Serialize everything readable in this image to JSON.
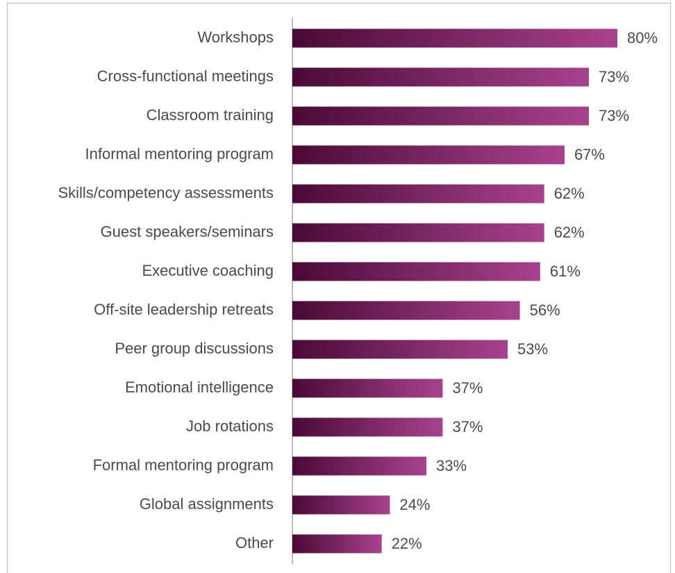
{
  "chart_data": {
    "type": "bar",
    "orientation": "horizontal",
    "categories": [
      "Workshops",
      "Cross-functional meetings",
      "Classroom training",
      "Informal mentoring program",
      "Skills/competency assessments",
      "Guest speakers/seminars",
      "Executive coaching",
      "Off-site leadership retreats",
      "Peer group discussions",
      "Emotional intelligence",
      "Job rotations",
      "Formal mentoring program",
      "Global assignments",
      "Other"
    ],
    "values": [
      80,
      73,
      73,
      67,
      62,
      62,
      61,
      56,
      53,
      37,
      37,
      33,
      24,
      22
    ],
    "value_labels": [
      "80%",
      "73%",
      "73%",
      "67%",
      "62%",
      "62%",
      "61%",
      "56%",
      "53%",
      "37%",
      "37%",
      "33%",
      "24%",
      "22%"
    ],
    "color": [
      "#4a0a35",
      "#a8428f"
    ]
  }
}
